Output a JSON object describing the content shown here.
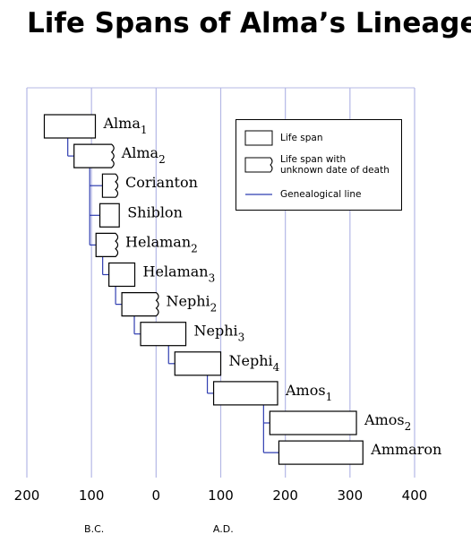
{
  "chart_data": {
    "type": "range-bar",
    "title": "Life Spans of Alma’s Lineage",
    "xlim": [
      -200,
      400
    ],
    "xticks": [
      {
        "value": -200,
        "label": "200"
      },
      {
        "value": -100,
        "label": "100"
      },
      0,
      100,
      200,
      300,
      400
    ],
    "era_labels": [
      "B.C.",
      "A.D."
    ],
    "grid": true,
    "grid_color": "#b4b8e6",
    "line_color": "#2f3db0",
    "people": [
      {
        "name": "Alma",
        "subscript": "1",
        "start": -173,
        "end": -94,
        "unknown_death": false,
        "parent": null
      },
      {
        "name": "Alma",
        "subscript": "2",
        "start": -127,
        "end": -66,
        "unknown_death": true,
        "parent": 0
      },
      {
        "name": "Corianton",
        "start": -83,
        "end": -60,
        "unknown_death": true,
        "parent": 1
      },
      {
        "name": "Shiblon",
        "start": -87,
        "end": -57,
        "unknown_death": false,
        "parent": 1
      },
      {
        "name": "Helaman",
        "subscript": "2",
        "start": -93,
        "end": -60,
        "unknown_death": true,
        "parent": 1
      },
      {
        "name": "Helaman",
        "subscript": "3",
        "start": -73,
        "end": -33,
        "unknown_death": false,
        "parent": 4
      },
      {
        "name": "Nephi",
        "subscript": "2",
        "start": -53,
        "end": 3,
        "unknown_death": true,
        "parent": 5
      },
      {
        "name": "Nephi",
        "subscript": "3",
        "start": -24,
        "end": 46,
        "unknown_death": false,
        "parent": 6
      },
      {
        "name": "Nephi",
        "subscript": "4",
        "start": 29,
        "end": 100,
        "unknown_death": false,
        "parent": 7
      },
      {
        "name": "Amos",
        "subscript": "1",
        "start": 89,
        "end": 188,
        "unknown_death": false,
        "parent": 8
      },
      {
        "name": "Amos",
        "subscript": "2",
        "start": 176,
        "end": 310,
        "unknown_death": false,
        "parent": 9
      },
      {
        "name": "Ammaron",
        "start": 190,
        "end": 320,
        "unknown_death": false,
        "parent": 9
      }
    ],
    "legend": [
      "Life span",
      "Life span with unknown date of death",
      "Genealogical line"
    ]
  }
}
